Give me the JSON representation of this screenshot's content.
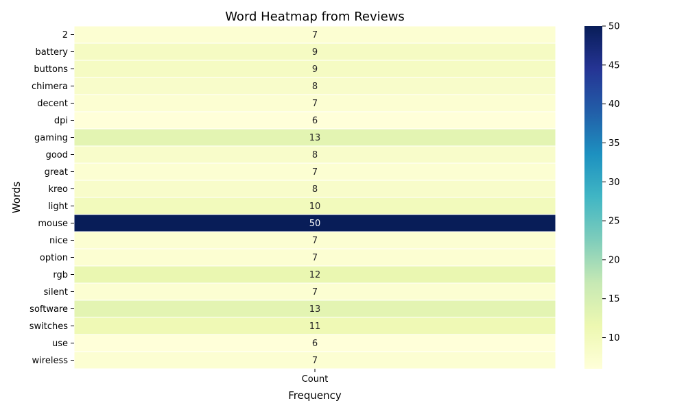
{
  "chart_data": {
    "type": "heatmap",
    "title": "Word Heatmap from Reviews",
    "xlabel": "Frequency",
    "ylabel": "Words",
    "columns": [
      "Count"
    ],
    "rows": [
      "2",
      "battery",
      "buttons",
      "chimera",
      "decent",
      "dpi",
      "gaming",
      "good",
      "great",
      "kreo",
      "light",
      "mouse",
      "nice",
      "option",
      "rgb",
      "silent",
      "software",
      "switches",
      "use",
      "wireless"
    ],
    "values": [
      7,
      9,
      9,
      8,
      7,
      6,
      13,
      8,
      7,
      8,
      10,
      50,
      7,
      7,
      12,
      7,
      13,
      11,
      6,
      7
    ],
    "colorbar": {
      "colormap": "YlGnBu",
      "range": [
        6,
        50
      ],
      "ticks": [
        10,
        15,
        20,
        25,
        30,
        35,
        40,
        45,
        50
      ]
    },
    "cell_labels": true
  }
}
